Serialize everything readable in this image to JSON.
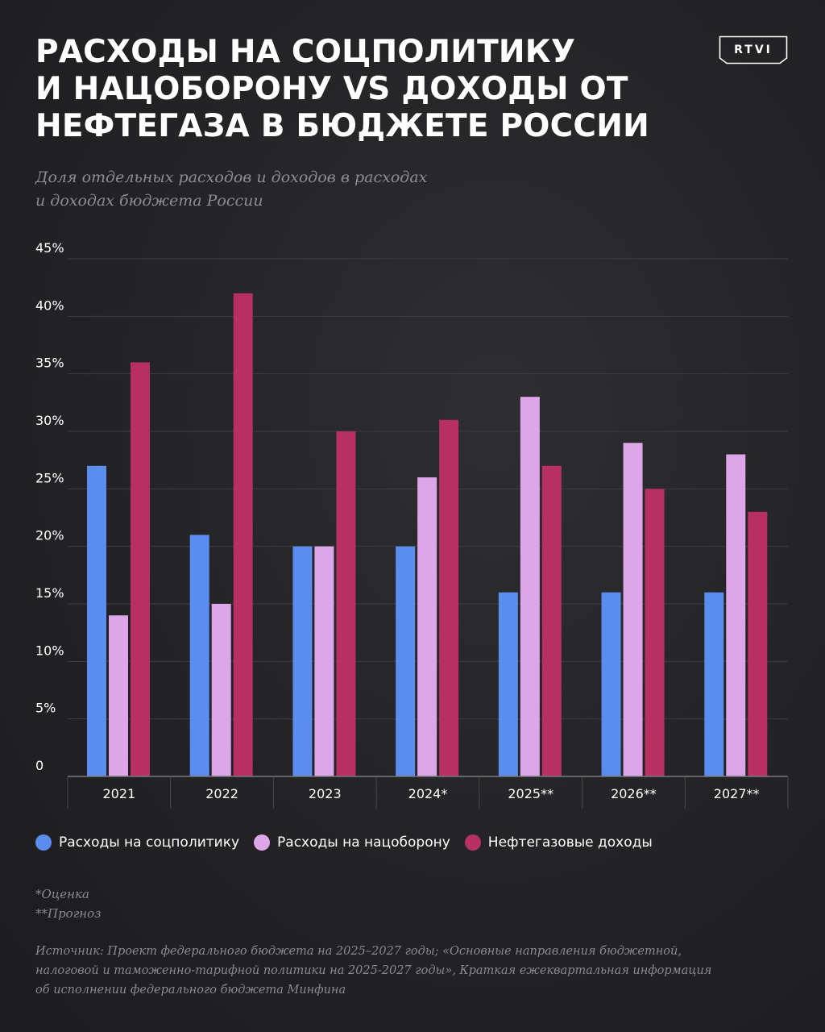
{
  "title": {
    "line1": "РАСХОДЫ НА СОЦПОЛИТИКУ",
    "line2": "И НАЦОБОРОНУ VS ДОХОДЫ ОТ",
    "line3": "НЕФТЕГАЗА В БЮДЖЕТЕ РОССИИ"
  },
  "logo": {
    "text": "RTVI"
  },
  "subtitle": {
    "line1": "Доля отдельных расходов и доходов в расходах",
    "line2": "и доходах бюджета России"
  },
  "chart_data": {
    "type": "bar",
    "categories": [
      "2021",
      "2022",
      "2023",
      "2024*",
      "2025**",
      "2026**",
      "2027**"
    ],
    "series": [
      {
        "name": "Расходы на соцполитику",
        "color": "#5b8def",
        "values": [
          27,
          21,
          20,
          20,
          16,
          16,
          16
        ]
      },
      {
        "name": "Расходы на нацоборону",
        "color": "#dda6e8",
        "values": [
          14,
          15,
          20,
          26,
          33,
          29,
          28
        ]
      },
      {
        "name": "Нефтегазовые доходы",
        "color": "#b7305f",
        "values": [
          36,
          42,
          30,
          31,
          27,
          25,
          23
        ]
      }
    ],
    "yticks": [
      0,
      5,
      10,
      15,
      20,
      25,
      30,
      35,
      40,
      45
    ],
    "ytick_labels": [
      "0",
      "5%",
      "10%",
      "15%",
      "20%",
      "25%",
      "30%",
      "35%",
      "40%",
      "45%"
    ],
    "ylim": [
      0,
      45
    ],
    "grid": true,
    "legend": "bottom"
  },
  "notes": {
    "estimate": "*Оценка",
    "forecast": "**Прогноз"
  },
  "source": {
    "line1": "Источник: Проект федерального бюджета на 2025–2027 годы; «Основные направления бюджетной,",
    "line2": "налоговой и таможенно-тарифной политики на 2025-2027 годы», Краткая ежеквартальная информация",
    "line3": "об исполнении федерального бюджета Минфина"
  }
}
